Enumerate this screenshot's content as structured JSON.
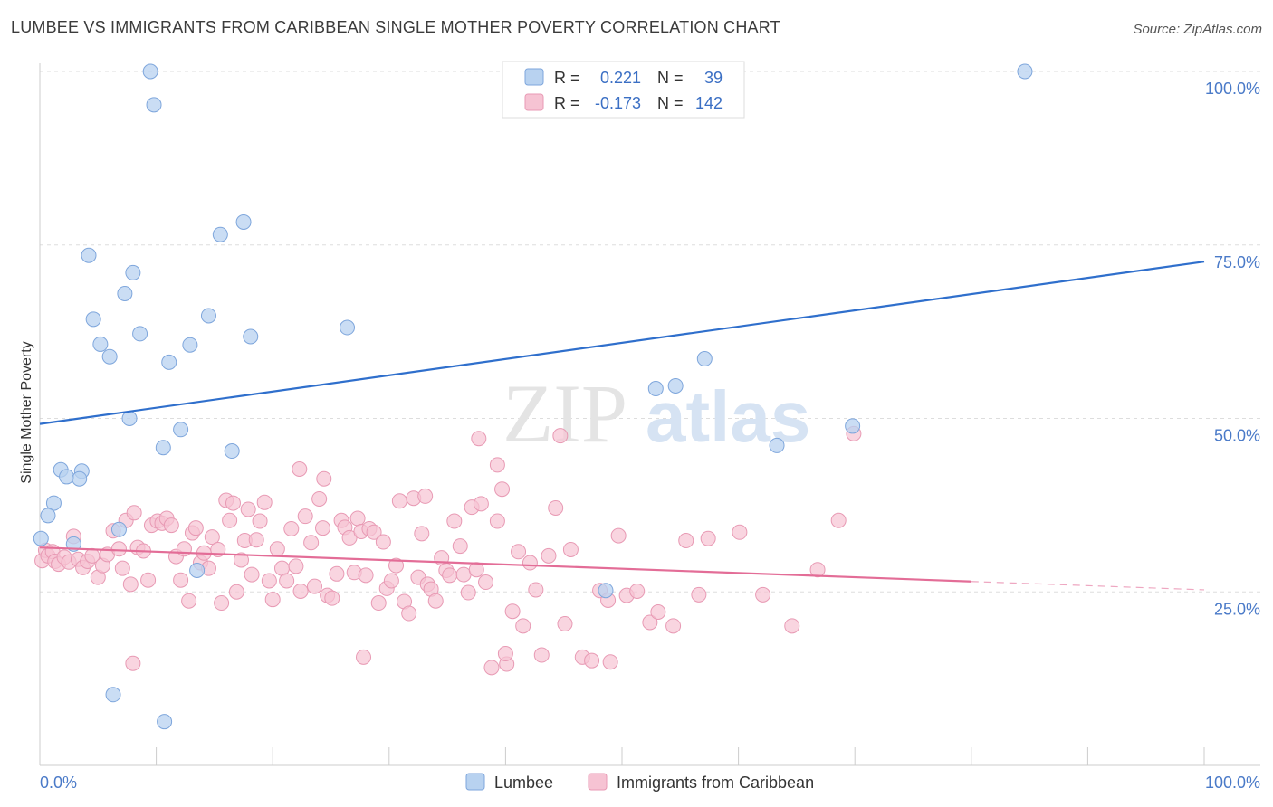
{
  "title": "LUMBEE VS IMMIGRANTS FROM CARIBBEAN SINGLE MOTHER POVERTY CORRELATION CHART",
  "source": "Source: ZipAtlas.com",
  "watermark": {
    "zip": "ZIP",
    "atlas": "atlas"
  },
  "colors": {
    "lumbee_fill": "#b8d2f0",
    "lumbee_stroke": "#7ea6dc",
    "lumbee_line": "#2f6fcc",
    "carib_fill": "#f6c3d3",
    "carib_stroke": "#e89ab4",
    "carib_line": "#e36d97",
    "tick_text": "#4a7ac8",
    "grid": "#dddddd"
  },
  "legend_box": {
    "rows": [
      {
        "r_label": "R =",
        "r_value": "0.221",
        "n_label": "N =",
        "n_value": "39"
      },
      {
        "r_label": "R =",
        "r_value": "-0.173",
        "n_label": "N =",
        "n_value": "142"
      }
    ]
  },
  "bottom_legend": {
    "lumbee": "Lumbee",
    "carib": "Immigrants from Caribbean"
  },
  "chart_data": {
    "type": "scatter",
    "title": "LUMBEE VS IMMIGRANTS FROM CARIBBEAN SINGLE MOTHER POVERTY CORRELATION CHART",
    "xlabel": "",
    "ylabel": "Single Mother Poverty",
    "xlim": [
      0,
      100
    ],
    "ylim": [
      0,
      105
    ],
    "x_tick_labels": [
      "0.0%",
      "100.0%"
    ],
    "y_ticks": [
      25,
      50,
      75,
      100
    ],
    "y_tick_labels": [
      "25.0%",
      "50.0%",
      "75.0%",
      "100.0%"
    ],
    "grid": true,
    "legend_position": "top-center",
    "series": [
      {
        "name": "Lumbee",
        "r": 0.221,
        "n": 39,
        "trend": {
          "x": [
            0,
            100
          ],
          "y": [
            49.2,
            72.6
          ]
        },
        "points": [
          [
            9.5,
            100
          ],
          [
            9.8,
            95.2
          ],
          [
            17.5,
            78.3
          ],
          [
            15.5,
            76.5
          ],
          [
            4.2,
            73.5
          ],
          [
            8,
            71
          ],
          [
            7.3,
            68
          ],
          [
            14.5,
            64.8
          ],
          [
            4.6,
            64.3
          ],
          [
            5.2,
            60.7
          ],
          [
            8.6,
            62.2
          ],
          [
            12.9,
            60.6
          ],
          [
            18.1,
            61.8
          ],
          [
            26.4,
            63.1
          ],
          [
            6,
            58.9
          ],
          [
            11.1,
            58.1
          ],
          [
            54.6,
            54.7
          ],
          [
            52.9,
            54.3
          ],
          [
            57.1,
            58.6
          ],
          [
            7.7,
            50
          ],
          [
            12.1,
            48.4
          ],
          [
            10.6,
            45.8
          ],
          [
            16.5,
            45.3
          ],
          [
            63.3,
            46.1
          ],
          [
            69.8,
            48.9
          ],
          [
            1.8,
            42.6
          ],
          [
            3.6,
            42.4
          ],
          [
            2.3,
            41.6
          ],
          [
            3.4,
            41.3
          ],
          [
            1.2,
            37.8
          ],
          [
            0.7,
            36
          ],
          [
            6.8,
            34
          ],
          [
            0.1,
            32.7
          ],
          [
            2.9,
            31.9
          ],
          [
            13.5,
            28.1
          ],
          [
            48.6,
            25.2
          ],
          [
            6.3,
            10.2
          ],
          [
            10.7,
            6.3
          ],
          [
            84.6,
            100
          ]
        ]
      },
      {
        "name": "Immigrants from Caribbean",
        "r": -0.173,
        "n": 142,
        "trend": {
          "x": [
            0,
            80
          ],
          "y": [
            31.4,
            26.5
          ]
        },
        "trend_dashed": {
          "x": [
            80,
            100
          ],
          "y": [
            26.5,
            25.3
          ]
        },
        "points": [
          [
            0.2,
            29.5
          ],
          [
            0.5,
            31
          ],
          [
            0.7,
            30.2
          ],
          [
            1.1,
            30.8
          ],
          [
            1.3,
            29.4
          ],
          [
            1.6,
            29
          ],
          [
            2.1,
            30
          ],
          [
            2.5,
            29.3
          ],
          [
            2.9,
            33
          ],
          [
            3.3,
            29.7
          ],
          [
            3.7,
            28.5
          ],
          [
            4.1,
            29.4
          ],
          [
            4.5,
            30.2
          ],
          [
            5,
            27.1
          ],
          [
            5.4,
            28.8
          ],
          [
            5.8,
            30.4
          ],
          [
            6.3,
            33.8
          ],
          [
            6.8,
            31.2
          ],
          [
            7.1,
            28.4
          ],
          [
            7.4,
            35.3
          ],
          [
            7.8,
            26.1
          ],
          [
            8.1,
            36.4
          ],
          [
            8.4,
            31.4
          ],
          [
            8.9,
            30.9
          ],
          [
            9.3,
            26.7
          ],
          [
            9.6,
            34.6
          ],
          [
            10.1,
            35.2
          ],
          [
            10.5,
            34.9
          ],
          [
            10.9,
            35.6
          ],
          [
            11.3,
            34.6
          ],
          [
            11.7,
            30.1
          ],
          [
            12.1,
            26.7
          ],
          [
            12.4,
            31.2
          ],
          [
            12.8,
            23.7
          ],
          [
            13.1,
            33.5
          ],
          [
            13.4,
            34.2
          ],
          [
            13.8,
            29.2
          ],
          [
            14.1,
            30.6
          ],
          [
            14.5,
            28.4
          ],
          [
            14.8,
            32.9
          ],
          [
            15.3,
            31.1
          ],
          [
            15.6,
            23.4
          ],
          [
            16,
            38.2
          ],
          [
            16.3,
            35.3
          ],
          [
            16.6,
            37.8
          ],
          [
            16.9,
            25
          ],
          [
            17.3,
            29.6
          ],
          [
            17.6,
            32.4
          ],
          [
            17.9,
            36.9
          ],
          [
            18.2,
            27.5
          ],
          [
            18.6,
            32.5
          ],
          [
            18.9,
            35.2
          ],
          [
            19.3,
            37.9
          ],
          [
            19.7,
            26.6
          ],
          [
            20,
            23.9
          ],
          [
            20.4,
            31.2
          ],
          [
            20.8,
            28.4
          ],
          [
            21.2,
            26.6
          ],
          [
            21.6,
            34.1
          ],
          [
            22,
            28.7
          ],
          [
            22.4,
            25.1
          ],
          [
            22.8,
            35.9
          ],
          [
            23.3,
            32.1
          ],
          [
            23.6,
            25.8
          ],
          [
            24,
            38.4
          ],
          [
            24.3,
            34.2
          ],
          [
            24.7,
            24.5
          ],
          [
            25.1,
            24.1
          ],
          [
            25.5,
            27.6
          ],
          [
            25.9,
            35.3
          ],
          [
            26.2,
            34.3
          ],
          [
            26.6,
            32.8
          ],
          [
            27,
            27.8
          ],
          [
            27.3,
            35.6
          ],
          [
            27.6,
            33.7
          ],
          [
            28,
            27.4
          ],
          [
            28.3,
            34.1
          ],
          [
            28.7,
            33.6
          ],
          [
            29.1,
            23.4
          ],
          [
            29.5,
            32.2
          ],
          [
            29.8,
            25.5
          ],
          [
            30.2,
            26.6
          ],
          [
            30.6,
            28.8
          ],
          [
            30.9,
            38.1
          ],
          [
            31.3,
            23.6
          ],
          [
            31.7,
            21.9
          ],
          [
            32.1,
            38.5
          ],
          [
            32.5,
            27.1
          ],
          [
            32.8,
            33.4
          ],
          [
            33.3,
            26.1
          ],
          [
            33.6,
            25.4
          ],
          [
            34,
            23.7
          ],
          [
            34.5,
            29.9
          ],
          [
            34.9,
            28.1
          ],
          [
            35.2,
            27.4
          ],
          [
            35.6,
            35.2
          ],
          [
            36.1,
            31.6
          ],
          [
            36.4,
            27.5
          ],
          [
            36.8,
            24.9
          ],
          [
            37.1,
            37.2
          ],
          [
            37.5,
            28.2
          ],
          [
            37.9,
            37.7
          ],
          [
            38.3,
            26.4
          ],
          [
            38.8,
            14.1
          ],
          [
            39.3,
            35.2
          ],
          [
            39.7,
            39.8
          ],
          [
            40.1,
            14.6
          ],
          [
            40.6,
            22.2
          ],
          [
            41.1,
            30.8
          ],
          [
            41.5,
            20.1
          ],
          [
            42.1,
            29.2
          ],
          [
            42.6,
            25.3
          ],
          [
            43.1,
            15.9
          ],
          [
            43.7,
            30.2
          ],
          [
            44.3,
            37.1
          ],
          [
            45.1,
            20.4
          ],
          [
            45.6,
            31.1
          ],
          [
            46.6,
            15.6
          ],
          [
            47.4,
            15.1
          ],
          [
            48.1,
            25.2
          ],
          [
            48.8,
            23.8
          ],
          [
            49.7,
            33.1
          ],
          [
            50.4,
            24.5
          ],
          [
            51.3,
            25.1
          ],
          [
            52.4,
            20.6
          ],
          [
            53.1,
            22.1
          ],
          [
            54.4,
            20.1
          ],
          [
            55.5,
            32.4
          ],
          [
            56.6,
            24.6
          ],
          [
            57.4,
            32.7
          ],
          [
            60.1,
            33.6
          ],
          [
            62.1,
            24.6
          ],
          [
            64.6,
            20.1
          ],
          [
            66.8,
            28.2
          ],
          [
            68.6,
            35.3
          ],
          [
            49,
            14.9
          ],
          [
            40,
            16.1
          ],
          [
            33.1,
            38.8
          ],
          [
            27.8,
            15.6
          ],
          [
            8,
            14.7
          ],
          [
            24.4,
            41.3
          ],
          [
            22.3,
            42.7
          ],
          [
            39.3,
            43.3
          ],
          [
            44.7,
            47.5
          ],
          [
            69.9,
            47.8
          ],
          [
            37.7,
            47.1
          ]
        ]
      }
    ]
  }
}
